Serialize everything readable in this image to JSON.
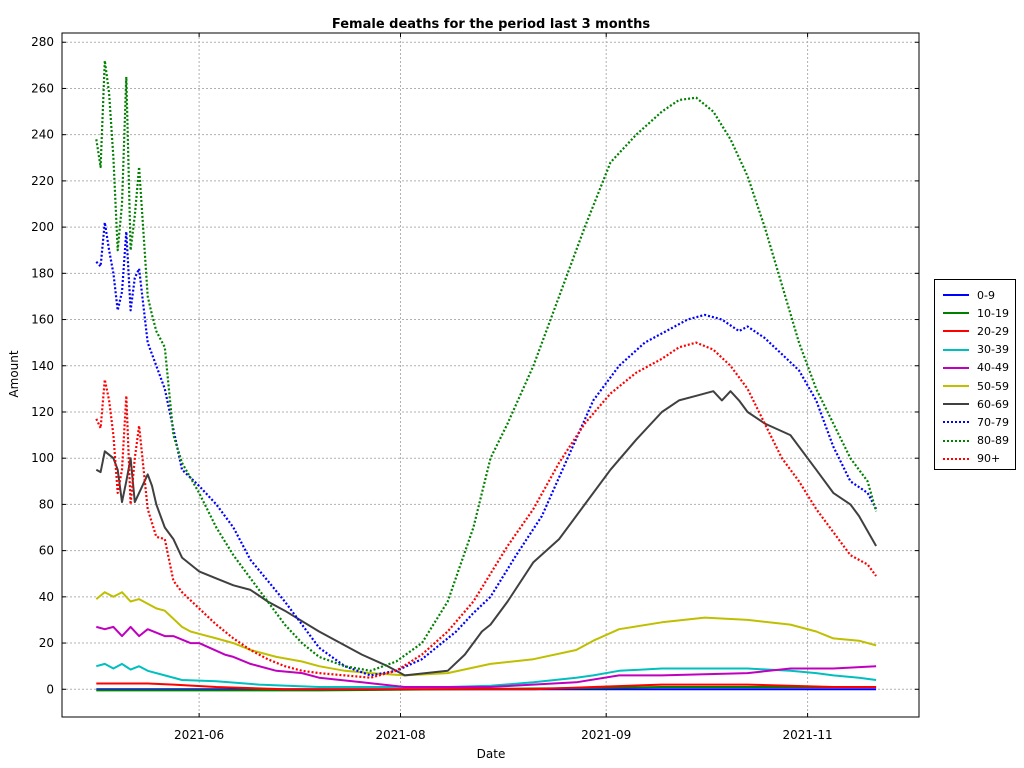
{
  "chart_data": {
    "type": "line",
    "title": "Female deaths for the period last 3 months",
    "xlabel": "Date",
    "ylabel": "Amount",
    "ylim": [
      -12,
      284
    ],
    "yticks": [
      0,
      20,
      40,
      60,
      80,
      100,
      120,
      140,
      160,
      180,
      200,
      220,
      240,
      260,
      280
    ],
    "xlim": [
      0,
      100
    ],
    "xticks": [
      {
        "x": 16,
        "label": "2021-06"
      },
      {
        "x": 39.5,
        "label": "2021-08"
      },
      {
        "x": 63.5,
        "label": "2021-09"
      },
      {
        "x": 87,
        "label": "2021-11"
      }
    ],
    "grid": true,
    "legend_position": "right",
    "series": [
      {
        "name": "0-9",
        "color": "#0000ff",
        "style": "solid",
        "x": [
          4,
          9,
          15,
          30,
          60,
          70,
          80,
          95
        ],
        "y": [
          0,
          0,
          0,
          0,
          0,
          0,
          0,
          0
        ]
      },
      {
        "name": "10-19",
        "color": "#008000",
        "style": "solid",
        "x": [
          4,
          30,
          60,
          70,
          80,
          95
        ],
        "y": [
          -0.5,
          -0.5,
          0.5,
          1,
          1,
          1
        ]
      },
      {
        "name": "20-29",
        "color": "#ff0000",
        "style": "solid",
        "x": [
          4,
          10,
          13,
          18,
          26,
          40,
          55,
          62,
          70,
          80,
          90,
          95
        ],
        "y": [
          2.5,
          2.5,
          2,
          1,
          0,
          0,
          0,
          1,
          2,
          2,
          1,
          1
        ]
      },
      {
        "name": "30-39",
        "color": "#00bfbf",
        "style": "solid",
        "x": [
          4,
          5,
          6,
          7,
          8,
          9,
          10,
          12,
          14,
          18,
          23,
          30,
          45,
          50,
          55,
          60,
          62,
          65,
          70,
          80,
          85,
          88,
          90,
          93,
          95
        ],
        "y": [
          10,
          11,
          9,
          11,
          8.5,
          10,
          8,
          6,
          4,
          3.5,
          2,
          1,
          1,
          1.5,
          3,
          5,
          6,
          8,
          9,
          9,
          8,
          7,
          6,
          5,
          4
        ]
      },
      {
        "name": "40-49",
        "color": "#bf00bf",
        "style": "solid",
        "x": [
          4,
          5,
          6,
          7,
          8,
          9,
          10,
          12,
          13,
          15,
          16,
          19,
          20,
          22,
          25,
          28,
          30,
          35,
          40,
          50,
          60,
          65,
          70,
          80,
          85,
          90,
          95
        ],
        "y": [
          27,
          26,
          27,
          23,
          27,
          23,
          26,
          23,
          23,
          20,
          20,
          15,
          14,
          11,
          8,
          7,
          5,
          3,
          1,
          1,
          3,
          6,
          6,
          7,
          9,
          9,
          10
        ]
      },
      {
        "name": "50-59",
        "color": "#bfbf00",
        "style": "solid",
        "x": [
          4,
          5,
          6,
          7,
          8,
          9,
          10,
          11,
          12,
          14,
          15,
          16,
          18,
          20,
          22,
          25,
          28,
          30,
          33,
          36,
          40,
          45,
          50,
          55,
          60,
          62,
          65,
          70,
          75,
          80,
          85,
          88,
          90,
          93,
          95
        ],
        "y": [
          39,
          42,
          40,
          42,
          38,
          39,
          37,
          35,
          34,
          27,
          25,
          24,
          22,
          20,
          17,
          14,
          12,
          10,
          8,
          7,
          6,
          7,
          11,
          13,
          17,
          21,
          26,
          29,
          31,
          30,
          28,
          25,
          22,
          21,
          19
        ]
      },
      {
        "name": "60-69",
        "color": "#404040",
        "style": "solid",
        "x": [
          4,
          4.5,
          5,
          6,
          6.5,
          7,
          7.5,
          8,
          8.5,
          9,
          10,
          10.5,
          11,
          12,
          13,
          14,
          16,
          18,
          20,
          22,
          24,
          26,
          30,
          35,
          38,
          40,
          45,
          47,
          49,
          50,
          52,
          55,
          58,
          61,
          64,
          67,
          70,
          72,
          74,
          76,
          77,
          78,
          79,
          80,
          82,
          85,
          88,
          90,
          92,
          93,
          95
        ],
        "y": [
          95,
          94,
          103,
          100,
          95,
          81,
          90,
          100,
          81,
          85,
          93,
          88,
          80,
          70,
          65,
          57,
          51,
          48,
          45,
          43,
          38,
          34,
          25,
          15,
          10,
          6,
          8,
          15,
          25,
          28,
          38,
          55,
          65,
          80,
          95,
          108,
          120,
          125,
          127,
          129,
          125,
          129,
          125,
          120,
          115,
          110,
          95,
          85,
          80,
          75,
          62
        ]
      },
      {
        "name": "70-79",
        "color": "#0000ff",
        "style": "dotted",
        "x": [
          4,
          4.5,
          5,
          5.5,
          6,
          6.5,
          7,
          7.5,
          8,
          8.5,
          9,
          10,
          10.5,
          11,
          12,
          14,
          16,
          18,
          20,
          22,
          24,
          26,
          28,
          30,
          33,
          36,
          39,
          42,
          46,
          48,
          50,
          53,
          56,
          59,
          62,
          65,
          68,
          71,
          73,
          75,
          77,
          79,
          80,
          82,
          84,
          86,
          88,
          90,
          92,
          94,
          95
        ],
        "y": [
          185,
          183,
          202,
          190,
          180,
          164,
          172,
          198,
          164,
          178,
          182,
          150,
          145,
          140,
          130,
          95,
          88,
          80,
          70,
          56,
          47,
          38,
          28,
          18,
          10,
          6,
          8,
          13,
          25,
          33,
          40,
          58,
          75,
          100,
          125,
          140,
          150,
          156,
          160,
          162,
          160,
          155,
          157,
          152,
          145,
          138,
          125,
          105,
          90,
          85,
          78
        ]
      },
      {
        "name": "80-89",
        "color": "#008000",
        "style": "dotted",
        "x": [
          4,
          4.5,
          5,
          5.5,
          6,
          6.5,
          7,
          7.5,
          8,
          8.5,
          9,
          10,
          10.5,
          11,
          12,
          13,
          14,
          16,
          18,
          20,
          22,
          24,
          26,
          28,
          30,
          33,
          36,
          39,
          42,
          45,
          48,
          50,
          52,
          55,
          58,
          61,
          64,
          67,
          70,
          72,
          74,
          76,
          78,
          80,
          82,
          84,
          86,
          88,
          90,
          92,
          94,
          95
        ],
        "y": [
          238,
          226,
          272,
          258,
          230,
          190,
          210,
          265,
          190,
          205,
          226,
          170,
          162,
          155,
          148,
          110,
          98,
          85,
          70,
          58,
          48,
          38,
          28,
          20,
          14,
          10,
          8,
          12,
          20,
          38,
          70,
          100,
          115,
          140,
          170,
          200,
          228,
          240,
          250,
          255,
          256,
          250,
          238,
          222,
          200,
          175,
          150,
          130,
          115,
          100,
          90,
          77
        ]
      },
      {
        "name": "90+",
        "color": "#ff0000",
        "style": "dotted",
        "x": [
          4,
          4.5,
          5,
          5.5,
          6,
          6.5,
          7,
          7.5,
          8,
          8.5,
          9,
          10,
          10.5,
          11,
          12,
          13,
          14,
          16,
          18,
          20,
          22,
          24,
          26,
          28,
          30,
          33,
          36,
          39,
          42,
          45,
          48,
          50,
          52,
          55,
          58,
          61,
          64,
          67,
          70,
          72,
          74,
          76,
          78,
          80,
          82,
          84,
          86,
          88,
          90,
          92,
          94,
          95
        ],
        "y": [
          117,
          113,
          134,
          125,
          110,
          85,
          95,
          127,
          80,
          100,
          114,
          78,
          72,
          66,
          65,
          47,
          42,
          35,
          28,
          22,
          17,
          13,
          10,
          8,
          7,
          6,
          5,
          8,
          15,
          25,
          38,
          50,
          62,
          78,
          98,
          115,
          128,
          137,
          143,
          148,
          150,
          147,
          140,
          130,
          115,
          100,
          90,
          78,
          68,
          58,
          54,
          49
        ]
      }
    ]
  }
}
